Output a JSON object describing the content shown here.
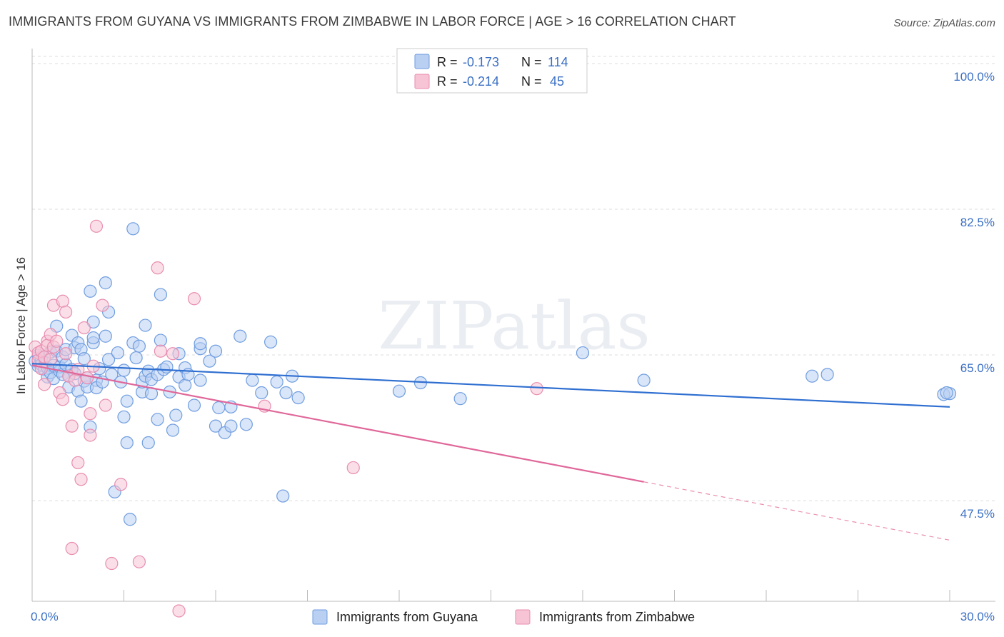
{
  "header": {
    "title": "IMMIGRANTS FROM GUYANA VS IMMIGRANTS FROM ZIMBABWE IN LABOR FORCE | AGE > 16 CORRELATION CHART",
    "source": "Source: ZipAtlas.com"
  },
  "watermark": "ZIPatlas",
  "chart_data": {
    "type": "scatter",
    "title": "IMMIGRANTS FROM GUYANA VS IMMIGRANTS FROM ZIMBABWE IN LABOR FORCE | AGE > 16 CORRELATION CHART",
    "ylabel": "In Labor Force | Age > 16",
    "xlabel": "",
    "xlim": [
      0,
      30
    ],
    "ylim": [
      38.5,
      103
    ],
    "x_ticks": [
      "0.0%",
      "30.0%"
    ],
    "y_ticks": [
      {
        "value": 100,
        "label": "100.0%"
      },
      {
        "value": 82.5,
        "label": "82.5%"
      },
      {
        "value": 65,
        "label": "65.0%"
      },
      {
        "value": 47.5,
        "label": "47.5%"
      }
    ],
    "grid": "horizontal dashed",
    "legend": {
      "placement": "top-center",
      "rows": [
        {
          "r_label": "R =",
          "r": "-0.173",
          "n_label": "N =",
          "n": "114"
        },
        {
          "r_label": "R =",
          "r": "-0.214",
          "n_label": "N =",
          "n": "45"
        }
      ]
    },
    "series": [
      {
        "name": "Immigrants from Guyana",
        "color": "#6f9de0",
        "fill": "#b9d0f2",
        "trend": {
          "x": [
            0,
            30
          ],
          "y": [
            65.5,
            60.3
          ]
        },
        "points": [
          [
            0.1,
            65.8
          ],
          [
            0.2,
            66.5
          ],
          [
            0.2,
            65.2
          ],
          [
            0.3,
            66.0
          ],
          [
            0.3,
            65.4
          ],
          [
            0.4,
            64.8
          ],
          [
            0.4,
            66.2
          ],
          [
            0.5,
            65.0
          ],
          [
            0.5,
            63.9
          ],
          [
            0.6,
            64.4
          ],
          [
            0.6,
            66.9
          ],
          [
            0.7,
            65.3
          ],
          [
            0.7,
            63.7
          ],
          [
            0.8,
            70.0
          ],
          [
            0.8,
            67.0
          ],
          [
            0.9,
            64.6
          ],
          [
            0.9,
            65.1
          ],
          [
            1.0,
            64.2
          ],
          [
            1.0,
            66.3
          ],
          [
            1.1,
            67.2
          ],
          [
            1.1,
            65.4
          ],
          [
            1.2,
            64.0
          ],
          [
            1.2,
            62.7
          ],
          [
            1.3,
            64.8
          ],
          [
            1.3,
            68.9
          ],
          [
            1.4,
            67.4
          ],
          [
            1.4,
            64.3
          ],
          [
            1.5,
            62.2
          ],
          [
            1.5,
            68.0
          ],
          [
            1.6,
            61.0
          ],
          [
            1.6,
            67.2
          ],
          [
            1.7,
            66.1
          ],
          [
            1.7,
            63.4
          ],
          [
            1.8,
            62.7
          ],
          [
            1.8,
            63.8
          ],
          [
            1.9,
            74.2
          ],
          [
            1.9,
            57.9
          ],
          [
            2.0,
            68.0
          ],
          [
            2.0,
            68.6
          ],
          [
            2.0,
            70.5
          ],
          [
            2.1,
            63.5
          ],
          [
            2.1,
            62.6
          ],
          [
            2.2,
            64.9
          ],
          [
            2.3,
            63.3
          ],
          [
            2.4,
            68.8
          ],
          [
            2.4,
            75.2
          ],
          [
            2.5,
            66.0
          ],
          [
            2.5,
            71.7
          ],
          [
            2.6,
            64.2
          ],
          [
            2.7,
            50.1
          ],
          [
            2.8,
            66.8
          ],
          [
            2.9,
            63.3
          ],
          [
            3.0,
            59.1
          ],
          [
            3.0,
            64.7
          ],
          [
            3.1,
            61.0
          ],
          [
            3.1,
            56.0
          ],
          [
            3.2,
            46.8
          ],
          [
            3.3,
            81.7
          ],
          [
            3.3,
            68.0
          ],
          [
            3.4,
            66.2
          ],
          [
            3.5,
            67.6
          ],
          [
            3.6,
            62.1
          ],
          [
            3.6,
            63.3
          ],
          [
            3.7,
            64.0
          ],
          [
            3.7,
            70.1
          ],
          [
            3.8,
            56.0
          ],
          [
            3.8,
            64.6
          ],
          [
            3.9,
            61.9
          ],
          [
            3.9,
            63.6
          ],
          [
            4.1,
            58.8
          ],
          [
            4.1,
            64.2
          ],
          [
            4.2,
            68.3
          ],
          [
            4.2,
            73.8
          ],
          [
            4.3,
            64.8
          ],
          [
            4.4,
            65.1
          ],
          [
            4.5,
            62.1
          ],
          [
            4.6,
            57.5
          ],
          [
            4.7,
            59.3
          ],
          [
            4.8,
            66.7
          ],
          [
            4.8,
            63.9
          ],
          [
            5.0,
            62.9
          ],
          [
            5.0,
            65.0
          ],
          [
            5.1,
            64.2
          ],
          [
            5.3,
            60.5
          ],
          [
            5.5,
            63.5
          ],
          [
            5.5,
            67.3
          ],
          [
            5.5,
            67.9
          ],
          [
            5.8,
            65.8
          ],
          [
            6.0,
            58.0
          ],
          [
            6.0,
            67.0
          ],
          [
            6.1,
            60.2
          ],
          [
            6.3,
            57.2
          ],
          [
            6.5,
            58.0
          ],
          [
            6.5,
            60.3
          ],
          [
            6.8,
            68.8
          ],
          [
            7.0,
            58.2
          ],
          [
            7.2,
            63.5
          ],
          [
            7.5,
            62.0
          ],
          [
            7.8,
            68.1
          ],
          [
            8.0,
            63.3
          ],
          [
            8.2,
            49.6
          ],
          [
            8.3,
            62.0
          ],
          [
            8.5,
            64.0
          ],
          [
            8.7,
            61.4
          ],
          [
            12.0,
            62.2
          ],
          [
            12.7,
            63.2
          ],
          [
            14.0,
            61.3
          ],
          [
            18.0,
            66.8
          ],
          [
            20.0,
            63.5
          ],
          [
            25.5,
            64.0
          ],
          [
            26.0,
            64.2
          ],
          [
            29.8,
            61.8
          ],
          [
            30.0,
            61.9
          ],
          [
            29.9,
            62.0
          ]
        ]
      },
      {
        "name": "Immigrants from Zimbabwe",
        "color": "#e98db0",
        "fill": "#f6c4d5",
        "trend": {
          "x": [
            0,
            20
          ],
          "y": [
            65.3,
            51.3
          ]
        },
        "trend_extension": {
          "x": [
            20,
            30
          ],
          "y": [
            51.3,
            44.3
          ]
        },
        "points": [
          [
            0.1,
            67.5
          ],
          [
            0.2,
            66.8
          ],
          [
            0.2,
            65.9
          ],
          [
            0.3,
            67.0
          ],
          [
            0.3,
            64.9
          ],
          [
            0.4,
            66.3
          ],
          [
            0.4,
            63.0
          ],
          [
            0.5,
            68.2
          ],
          [
            0.5,
            67.7
          ],
          [
            0.6,
            69.0
          ],
          [
            0.6,
            66.0
          ],
          [
            0.7,
            72.5
          ],
          [
            0.7,
            67.5
          ],
          [
            0.8,
            68.2
          ],
          [
            0.9,
            62.0
          ],
          [
            1.0,
            73.0
          ],
          [
            1.0,
            61.2
          ],
          [
            1.1,
            71.7
          ],
          [
            1.1,
            66.7
          ],
          [
            1.2,
            64.0
          ],
          [
            1.3,
            58.0
          ],
          [
            1.3,
            43.3
          ],
          [
            1.4,
            63.5
          ],
          [
            1.5,
            64.8
          ],
          [
            1.5,
            53.6
          ],
          [
            1.6,
            51.6
          ],
          [
            1.7,
            69.8
          ],
          [
            1.8,
            63.8
          ],
          [
            1.9,
            59.5
          ],
          [
            1.9,
            56.9
          ],
          [
            2.0,
            65.2
          ],
          [
            2.1,
            82.0
          ],
          [
            2.3,
            72.5
          ],
          [
            2.4,
            60.5
          ],
          [
            2.6,
            41.5
          ],
          [
            2.9,
            51.0
          ],
          [
            3.5,
            41.7
          ],
          [
            4.1,
            77.0
          ],
          [
            4.2,
            67.0
          ],
          [
            4.6,
            66.7
          ],
          [
            4.8,
            35.8
          ],
          [
            5.3,
            73.3
          ],
          [
            7.6,
            60.4
          ],
          [
            10.5,
            53.0
          ],
          [
            16.5,
            62.5
          ]
        ]
      }
    ]
  }
}
